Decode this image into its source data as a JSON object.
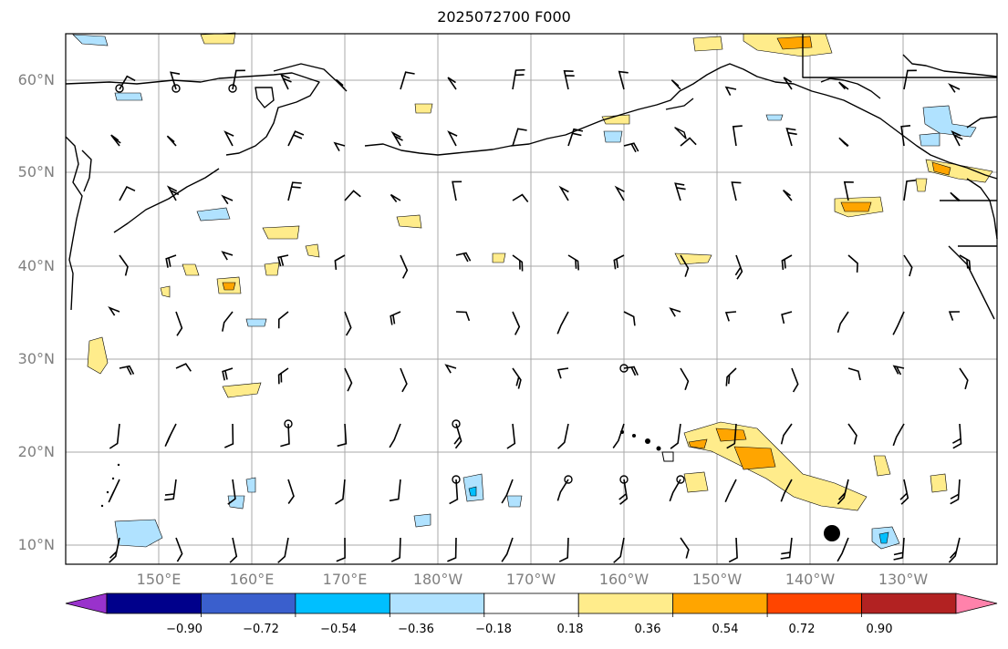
{
  "title": "2025072700 F000",
  "lat_labels": [
    "60°N",
    "50°N",
    "40°N",
    "30°N",
    "20°N",
    "10°N"
  ],
  "lon_labels": [
    "150°E",
    "160°E",
    "170°E",
    "180°W",
    "170°W",
    "160°W",
    "150°W",
    "140°W",
    "130°W"
  ],
  "colorbar": {
    "ticks": [
      "−0.90",
      "−0.72",
      "−0.54",
      "−0.36",
      "−0.18",
      "0.18",
      "0.36",
      "0.54",
      "0.72",
      "0.90"
    ],
    "colors": [
      "#9932cc",
      "#00008b",
      "#3a5fcd",
      "#00bfff",
      "#b0e2ff",
      "#ffffff",
      "#ffec8b",
      "#ffa500",
      "#ff4500",
      "#b22222",
      "#ff82ab"
    ]
  }
}
